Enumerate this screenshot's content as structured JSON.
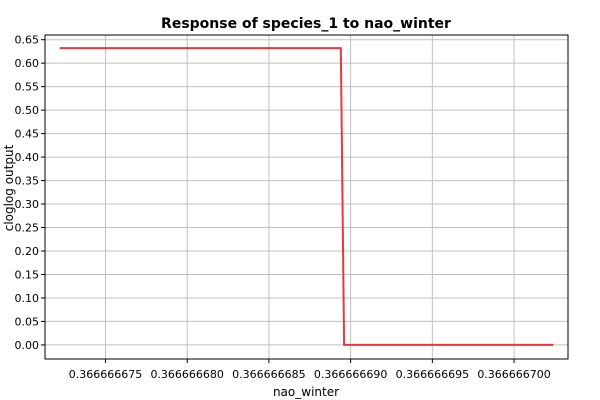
{
  "chart_data": {
    "type": "line",
    "title": "Response of species_1 to nao_winter",
    "xlabel": "nao_winter",
    "ylabel": "cloglog output",
    "xlim": [
      0.3666666713,
      0.3666666703
    ],
    "ylim": [
      -0.03,
      0.66
    ],
    "x_ticks": [
      0.366666675,
      0.36666668,
      0.366666685,
      0.36666669,
      0.366666695,
      0.3666667
    ],
    "x_tick_labels": [
      "0.366666675",
      "0.366666680",
      "0.366666685",
      "0.366666690",
      "0.366666695",
      "0.366666700"
    ],
    "y_ticks": [
      0.0,
      0.05,
      0.1,
      0.15,
      0.2,
      0.25,
      0.3,
      0.35,
      0.4,
      0.45,
      0.5,
      0.55,
      0.6,
      0.65
    ],
    "y_tick_labels": [
      "0.00",
      "0.05",
      "0.10",
      "0.15",
      "0.20",
      "0.25",
      "0.30",
      "0.35",
      "0.40",
      "0.45",
      "0.50",
      "0.55",
      "0.60",
      "0.65"
    ],
    "grid": true,
    "series": [
      {
        "color": "#e8383b",
        "x": [
          0.3666666722,
          0.3666666894,
          0.3666666896,
          0.3666667024
        ],
        "y": [
          0.632,
          0.632,
          0.0,
          0.0
        ]
      }
    ]
  }
}
